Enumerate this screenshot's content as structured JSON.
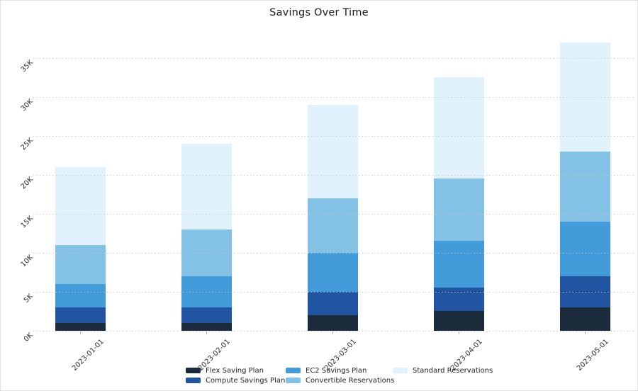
{
  "chart_data": {
    "type": "bar",
    "stacked": true,
    "title": "Savings Over Time",
    "categories": [
      "2023-01-01",
      "2023-02-01",
      "2023-03-01",
      "2023-04-01",
      "2023-05-01"
    ],
    "series": [
      {
        "name": "Flex Saving Plan",
        "color": "#1c2b3c",
        "values": [
          1000,
          1000,
          2000,
          2500,
          3000
        ]
      },
      {
        "name": "Compute Savings Plan",
        "color": "#2155a2",
        "values": [
          2000,
          2000,
          3000,
          3000,
          4000
        ]
      },
      {
        "name": "EC2 Savings Plan",
        "color": "#449bda",
        "values": [
          3000,
          4000,
          5000,
          6000,
          7000
        ]
      },
      {
        "name": "Convertible Reservations",
        "color": "#83c1e5",
        "values": [
          5000,
          6000,
          7000,
          8000,
          9000
        ]
      },
      {
        "name": "Standard Reservations",
        "color": "#e2f2fc",
        "values": [
          10000,
          11000,
          12000,
          13000,
          14000
        ]
      }
    ],
    "totals": [
      21000,
      24000,
      29000,
      32500,
      37000
    ],
    "xlabel": "",
    "ylabel": "",
    "ytick_labels": [
      "0K",
      "5K",
      "10K",
      "15K",
      "20K",
      "25K",
      "30K",
      "35K"
    ],
    "ytick_values": [
      0,
      5000,
      10000,
      15000,
      20000,
      25000,
      30000,
      35000
    ],
    "ylim": [
      0,
      38700
    ],
    "grid": "horizontal-dotted",
    "legend_position": "bottom-center",
    "legend_columns": 3
  }
}
